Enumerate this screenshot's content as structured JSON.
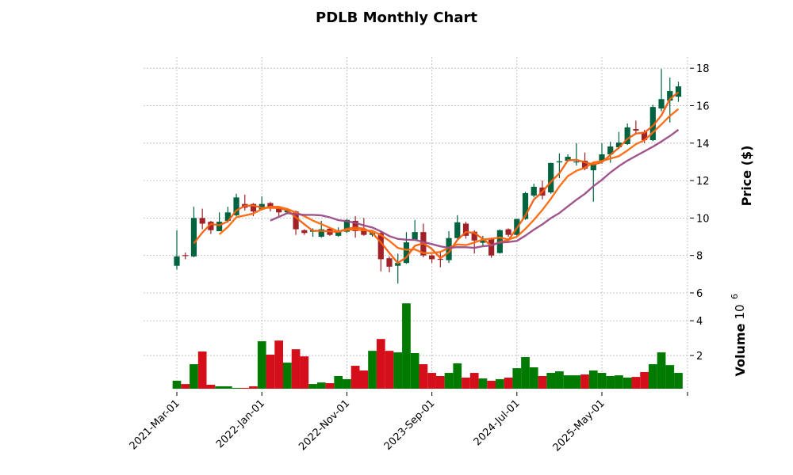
{
  "chart_data": {
    "type": "candlestick",
    "title": "PDLB Monthly Chart",
    "ylabel": "Price ($)",
    "volume_label": "Volume",
    "volume_exponent_base": "10",
    "volume_exponent": "6",
    "start_month": "2021-03",
    "interval": "monthly",
    "x_tick_labels": [
      "2021-Mar-01",
      "2022-Jan-01",
      "2022-Nov-01",
      "2023-Sep-01",
      "2024-Jul-01",
      "2025-May-01"
    ],
    "x_tick_indices": [
      0,
      10,
      20,
      30,
      40,
      50
    ],
    "price_ticks": [
      "6",
      "8",
      "10",
      "12",
      "14",
      "16",
      "18"
    ],
    "price_ylim": [
      6.0,
      18.6
    ],
    "volume_ticks": [
      "2",
      "4"
    ],
    "volume_ylim": [
      0,
      5.6
    ],
    "grid": true,
    "moving_averages": [
      {
        "period": 3,
        "color": "#f26010"
      },
      {
        "period": 6,
        "color": "#ff6a10"
      },
      {
        "period": 12,
        "color": "#9b4d86"
      }
    ],
    "colors": {
      "up_candle": "#006340",
      "down_candle": "#a02128",
      "up_volume": "#007a00",
      "down_volume": "#d50f1a",
      "grid": "#b8b8b8"
    },
    "ohlc": [
      [
        7.45,
        9.35,
        7.25,
        7.95
      ],
      [
        8.02,
        8.15,
        7.8,
        7.98
      ],
      [
        7.95,
        10.6,
        7.9,
        10.0
      ],
      [
        10.0,
        10.5,
        9.4,
        9.7
      ],
      [
        9.8,
        9.85,
        9.15,
        9.35
      ],
      [
        9.3,
        10.3,
        9.3,
        9.8
      ],
      [
        9.85,
        10.6,
        9.75,
        10.3
      ],
      [
        10.15,
        11.3,
        10.1,
        11.1
      ],
      [
        10.75,
        11.25,
        10.4,
        10.55
      ],
      [
        10.75,
        10.8,
        10.1,
        10.35
      ],
      [
        10.45,
        11.15,
        10.4,
        10.75
      ],
      [
        10.8,
        10.85,
        10.35,
        10.55
      ],
      [
        10.5,
        10.55,
        10.1,
        10.3
      ],
      [
        10.3,
        10.45,
        10.2,
        10.4
      ],
      [
        10.35,
        10.4,
        9.1,
        9.4
      ],
      [
        9.35,
        9.4,
        9.1,
        9.2
      ],
      [
        9.27,
        9.45,
        9.0,
        9.35
      ],
      [
        9.0,
        9.85,
        8.95,
        9.4
      ],
      [
        9.43,
        9.5,
        9.05,
        9.1
      ],
      [
        9.05,
        9.5,
        9.0,
        9.27
      ],
      [
        9.27,
        9.95,
        9.2,
        9.9
      ],
      [
        9.85,
        10.1,
        8.95,
        9.3
      ],
      [
        9.43,
        10.0,
        9.05,
        9.1
      ],
      [
        9.1,
        9.3,
        9.0,
        9.2
      ],
      [
        9.2,
        9.3,
        7.15,
        7.8
      ],
      [
        7.85,
        7.95,
        7.1,
        7.4
      ],
      [
        7.45,
        8.1,
        6.5,
        7.6
      ],
      [
        7.6,
        9.25,
        7.55,
        8.7
      ],
      [
        8.85,
        9.9,
        8.8,
        9.25
      ],
      [
        9.25,
        9.7,
        7.9,
        8.0
      ],
      [
        8.0,
        8.05,
        7.6,
        7.8
      ],
      [
        7.82,
        8.2,
        7.37,
        7.78
      ],
      [
        7.75,
        9.3,
        7.6,
        8.93
      ],
      [
        8.93,
        10.15,
        8.9,
        9.77
      ],
      [
        9.7,
        9.8,
        8.9,
        9.05
      ],
      [
        9.27,
        9.35,
        8.1,
        8.8
      ],
      [
        8.68,
        9.05,
        8.5,
        8.8
      ],
      [
        8.9,
        8.95,
        7.87,
        8.0
      ],
      [
        8.13,
        9.4,
        8.1,
        9.35
      ],
      [
        9.4,
        9.45,
        9.0,
        9.1
      ],
      [
        9.1,
        9.95,
        9.05,
        9.95
      ],
      [
        9.95,
        11.4,
        9.9,
        11.33
      ],
      [
        11.2,
        11.84,
        11.1,
        11.67
      ],
      [
        11.63,
        12.0,
        11.0,
        11.2
      ],
      [
        11.37,
        12.95,
        11.3,
        12.94
      ],
      [
        12.97,
        13.45,
        12.13,
        13.03
      ],
      [
        13.06,
        13.4,
        13.0,
        13.27
      ],
      [
        12.98,
        14.0,
        12.8,
        13.02
      ],
      [
        13.06,
        13.5,
        12.55,
        12.64
      ],
      [
        12.55,
        13.0,
        10.87,
        12.9
      ],
      [
        13.06,
        14.0,
        12.9,
        13.4
      ],
      [
        13.4,
        14.07,
        12.95,
        13.82
      ],
      [
        13.78,
        14.6,
        13.7,
        14.03
      ],
      [
        13.95,
        15.05,
        13.9,
        14.84
      ],
      [
        14.75,
        15.2,
        14.5,
        14.67
      ],
      [
        14.6,
        14.7,
        14.0,
        14.16
      ],
      [
        14.16,
        16.05,
        14.1,
        15.93
      ],
      [
        15.85,
        17.96,
        15.7,
        16.35
      ],
      [
        16.27,
        17.5,
        15.1,
        16.78
      ],
      [
        16.48,
        17.28,
        16.2,
        17.03
      ]
    ],
    "volume": [
      0.55,
      0.36,
      1.5,
      2.23,
      0.32,
      0.23,
      0.23,
      0.14,
      0.14,
      0.23,
      2.82,
      2.05,
      2.86,
      1.59,
      2.36,
      1.95,
      0.36,
      0.45,
      0.41,
      0.82,
      0.64,
      1.41,
      1.14,
      2.27,
      2.95,
      2.27,
      2.18,
      5.0,
      2.14,
      1.5,
      1.0,
      0.82,
      1.0,
      1.55,
      0.73,
      1.0,
      0.68,
      0.55,
      0.64,
      0.73,
      1.27,
      1.91,
      1.32,
      0.82,
      1.0,
      1.09,
      0.86,
      0.86,
      0.91,
      1.14,
      1.0,
      0.82,
      0.86,
      0.73,
      0.77,
      1.05,
      1.5,
      2.18,
      1.45,
      1.0
    ]
  }
}
